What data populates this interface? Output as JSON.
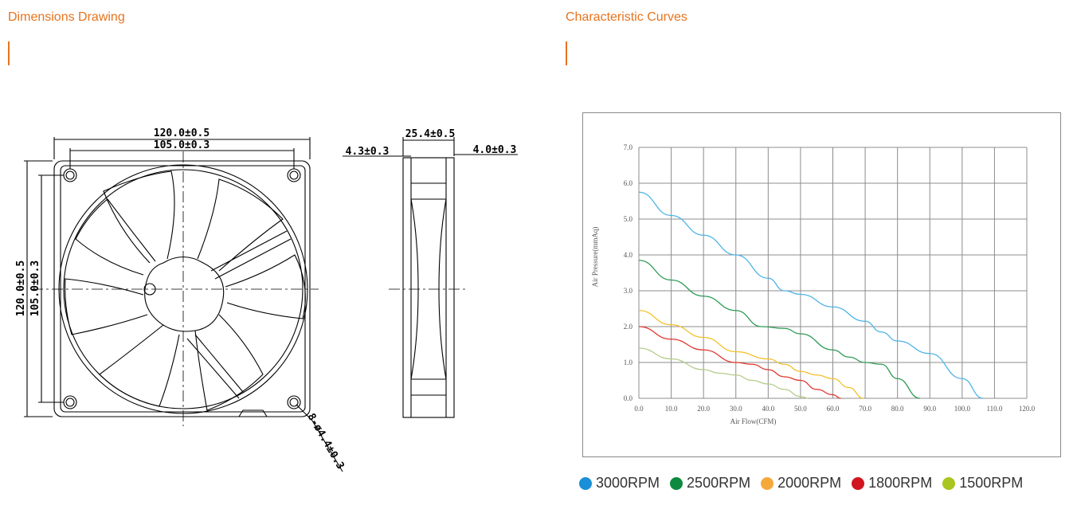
{
  "left_section": {
    "title": "Dimensions Drawing"
  },
  "right_section": {
    "title": "Characteristic Curves"
  },
  "drawing": {
    "overall_width": "120.0±0.5",
    "hole_spacing_width": "105.0±0.3",
    "overall_height": "120.0±0.5",
    "hole_spacing_height": "105.0±0.3",
    "thickness": "25.4±0.5",
    "flange_left": "4.3±0.3",
    "flange_right": "4.0±0.3",
    "mounting_holes": "8-ø4.4±0.3"
  },
  "chart_data": {
    "type": "line",
    "xlabel": "Air Flow(CFM)",
    "ylabel": "Air Pressure(mmAq)",
    "xlim": [
      0,
      120
    ],
    "ylim": [
      0,
      7
    ],
    "x_ticks": [
      "0.0",
      "10.0",
      "20.0",
      "30.0",
      "40.0",
      "50.0",
      "60.0",
      "70.0",
      "80.0",
      "90.0",
      "100.0",
      "110.0",
      "120.0"
    ],
    "y_ticks": [
      "0.0",
      "1.0",
      "2.0",
      "3.0",
      "4.0",
      "5.0",
      "6.0",
      "7.0"
    ],
    "grid": true,
    "series": [
      {
        "name": "3000RPM",
        "color": "#4ab3e6",
        "x": [
          0,
          10,
          20,
          30,
          40,
          45,
          50,
          60,
          70,
          75,
          80,
          90,
          100,
          106.5
        ],
        "y": [
          5.75,
          5.1,
          4.55,
          4.0,
          3.35,
          3.0,
          2.9,
          2.55,
          2.15,
          1.85,
          1.6,
          1.25,
          0.55,
          0.0
        ]
      },
      {
        "name": "2500RPM",
        "color": "#2e9a55",
        "x": [
          0,
          10,
          20,
          30,
          38,
          45,
          50,
          60,
          65,
          70,
          75,
          80,
          87
        ],
        "y": [
          3.85,
          3.3,
          2.85,
          2.45,
          2.0,
          1.95,
          1.8,
          1.35,
          1.15,
          1.0,
          0.95,
          0.55,
          0.0
        ]
      },
      {
        "name": "2000RPM",
        "color": "#f3c02a",
        "x": [
          0,
          10,
          20,
          30,
          40,
          45,
          50,
          55,
          60,
          65,
          69.5
        ],
        "y": [
          2.45,
          2.05,
          1.7,
          1.3,
          1.1,
          0.95,
          0.75,
          0.65,
          0.55,
          0.3,
          0.0
        ]
      },
      {
        "name": "1800RPM",
        "color": "#e0352c",
        "x": [
          0,
          10,
          20,
          30,
          35,
          40,
          45,
          50,
          55,
          60,
          62.5
        ],
        "y": [
          2.0,
          1.65,
          1.35,
          1.0,
          0.95,
          0.8,
          0.6,
          0.5,
          0.25,
          0.1,
          0.0
        ]
      },
      {
        "name": "1500RPM",
        "color": "#b4cc8a",
        "x": [
          0,
          10,
          20,
          25,
          30,
          35,
          40,
          45,
          50,
          52.5
        ],
        "y": [
          1.4,
          1.1,
          0.8,
          0.7,
          0.65,
          0.5,
          0.4,
          0.25,
          0.05,
          0.0
        ]
      }
    ]
  },
  "legend": [
    {
      "label": "3000RPM",
      "color": "#1a8fd8"
    },
    {
      "label": "2500RPM",
      "color": "#0d8a3f"
    },
    {
      "label": "2000RPM",
      "color": "#f5a93b"
    },
    {
      "label": "1800RPM",
      "color": "#d0161e"
    },
    {
      "label": "1500RPM",
      "color": "#a8c520"
    }
  ]
}
